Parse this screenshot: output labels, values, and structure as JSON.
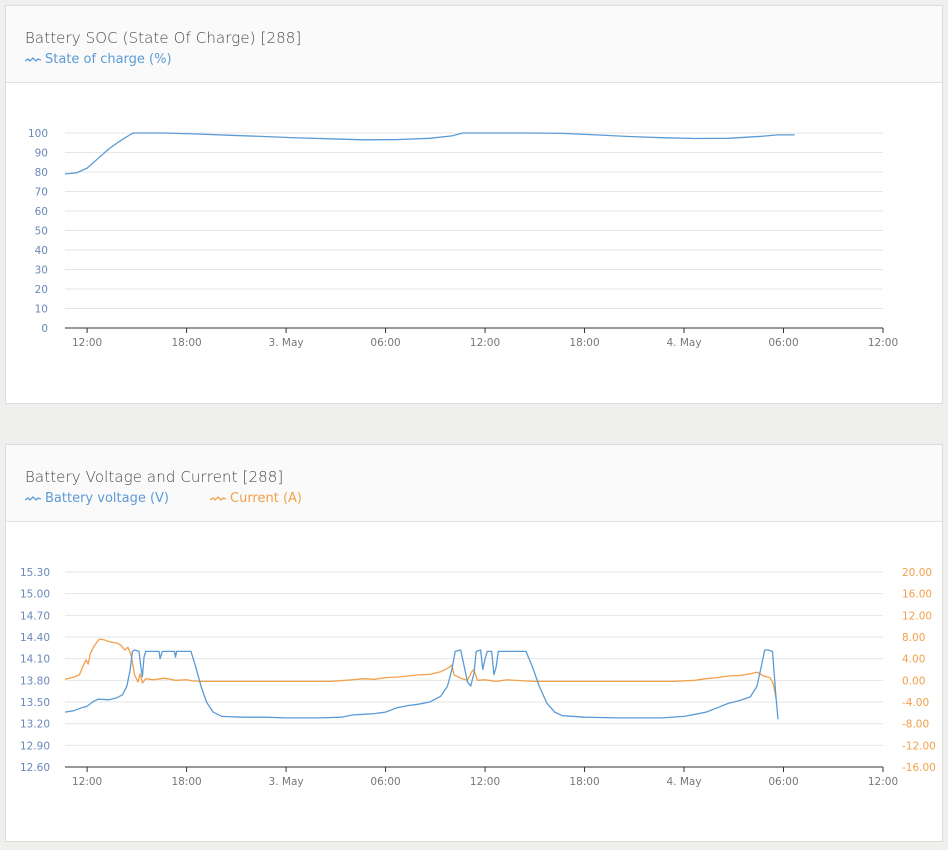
{
  "colors": {
    "voltage": "#5b9bd5",
    "current": "#f2a04a",
    "axis_text_left": "#6a88b8",
    "axis_text_bottom": "#777777",
    "grid": "#e6e6e6",
    "axis": "#333333"
  },
  "panels": [
    {
      "title": "Battery SOC (State Of Charge) [288]",
      "legend": [
        "State of charge (%)"
      ]
    },
    {
      "title": "Battery Voltage and Current [288]",
      "legend": [
        "Battery voltage (V)",
        "Current (A)"
      ]
    }
  ],
  "chart_data": [
    {
      "type": "line",
      "x_ticks": [
        "12:00",
        "18:00",
        "3. May",
        "06:00",
        "12:00",
        "18:00",
        "4. May",
        "06:00",
        "12:00"
      ],
      "x_range": [
        "2 May 10:00",
        "4 May 12:00"
      ],
      "y_ticks": [
        "100",
        "90",
        "80",
        "70",
        "60",
        "50",
        "40",
        "30",
        "20",
        "10",
        "0"
      ],
      "ylim": [
        0,
        100
      ],
      "grid": true,
      "series": [
        {
          "name": "State of charge (%)",
          "axis": "left",
          "points": [
            [
              0,
              79
            ],
            [
              1,
              79.5
            ],
            [
              2,
              82
            ],
            [
              3,
              87
            ],
            [
              4,
              92
            ],
            [
              5,
              96
            ],
            [
              6,
              99.5
            ],
            [
              6.2,
              100
            ],
            [
              9,
              100
            ],
            [
              12,
              99.5
            ],
            [
              15,
              98.8
            ],
            [
              18,
              98.2
            ],
            [
              21,
              97.5
            ],
            [
              24,
              97
            ],
            [
              27,
              96.5
            ],
            [
              30,
              96.6
            ],
            [
              33,
              97.3
            ],
            [
              35,
              98.5
            ],
            [
              36,
              100
            ],
            [
              36.2,
              100
            ],
            [
              42,
              100
            ],
            [
              45,
              99.8
            ],
            [
              48,
              99
            ],
            [
              51,
              98.2
            ],
            [
              54,
              97.6
            ],
            [
              57,
              97.2
            ],
            [
              60,
              97.3
            ],
            [
              63,
              98.3
            ],
            [
              64.5,
              99
            ],
            [
              66,
              99
            ]
          ]
        }
      ]
    },
    {
      "type": "line",
      "x_ticks": [
        "12:00",
        "18:00",
        "3. May",
        "06:00",
        "12:00",
        "18:00",
        "4. May",
        "06:00",
        "12:00"
      ],
      "x_range": [
        "2 May 10:00",
        "4 May 12:00"
      ],
      "y_left_ticks": [
        "15.30",
        "15.00",
        "14.70",
        "14.40",
        "14.10",
        "13.80",
        "13.50",
        "13.20",
        "12.90",
        "12.60"
      ],
      "y_left_range": [
        12.6,
        15.3
      ],
      "y_right_ticks": [
        "20.00",
        "16.00",
        "12.00",
        "8.00",
        "4.00",
        "0.00",
        "-4.00",
        "-8.00",
        "-12.00",
        "-16.00"
      ],
      "y_right_range": [
        -16,
        20
      ],
      "grid": true,
      "series": [
        {
          "name": "Battery voltage (V)",
          "axis": "left",
          "points": [
            [
              0,
              13.36
            ],
            [
              0.8,
              13.38
            ],
            [
              1.5,
              13.42
            ],
            [
              2,
              13.44
            ],
            [
              2.5,
              13.5
            ],
            [
              3,
              13.54
            ],
            [
              4,
              13.53
            ],
            [
              4.7,
              13.56
            ],
            [
              5.2,
              13.6
            ],
            [
              5.6,
              13.72
            ],
            [
              5.9,
              13.95
            ],
            [
              6.1,
              14.2
            ],
            [
              6.3,
              14.22
            ],
            [
              6.7,
              14.2
            ],
            [
              6.85,
              14.0
            ],
            [
              7.0,
              13.85
            ],
            [
              7.15,
              14.12
            ],
            [
              7.3,
              14.2
            ],
            [
              8.5,
              14.2
            ],
            [
              8.6,
              14.1
            ],
            [
              8.8,
              14.2
            ],
            [
              9.9,
              14.2
            ],
            [
              10.0,
              14.12
            ],
            [
              10.1,
              14.2
            ],
            [
              11.4,
              14.2
            ],
            [
              11.8,
              14.0
            ],
            [
              12.3,
              13.72
            ],
            [
              12.8,
              13.5
            ],
            [
              13.4,
              13.36
            ],
            [
              14.2,
              13.3
            ],
            [
              16,
              13.29
            ],
            [
              18,
              13.29
            ],
            [
              20,
              13.28
            ],
            [
              23,
              13.28
            ],
            [
              25,
              13.29
            ],
            [
              26,
              13.32
            ],
            [
              27,
              13.33
            ],
            [
              28,
              13.34
            ],
            [
              29,
              13.36
            ],
            [
              30,
              13.42
            ],
            [
              31,
              13.45
            ],
            [
              32,
              13.47
            ],
            [
              33,
              13.5
            ],
            [
              34,
              13.58
            ],
            [
              34.6,
              13.72
            ],
            [
              35,
              13.95
            ],
            [
              35.3,
              14.2
            ],
            [
              35.8,
              14.22
            ],
            [
              36.1,
              14.0
            ],
            [
              36.4,
              13.78
            ],
            [
              36.7,
              13.72
            ],
            [
              37.0,
              13.9
            ],
            [
              37.2,
              14.2
            ],
            [
              37.6,
              14.22
            ],
            [
              37.8,
              13.95
            ],
            [
              38.0,
              14.1
            ],
            [
              38.2,
              14.2
            ],
            [
              38.6,
              14.2
            ],
            [
              38.8,
              13.88
            ],
            [
              39.0,
              13.98
            ],
            [
              39.2,
              14.2
            ],
            [
              41.7,
              14.2
            ],
            [
              42.3,
              13.98
            ],
            [
              42.9,
              13.72
            ],
            [
              43.6,
              13.48
            ],
            [
              44.3,
              13.36
            ],
            [
              45,
              13.31
            ],
            [
              47,
              13.29
            ],
            [
              50,
              13.28
            ],
            [
              54,
              13.28
            ],
            [
              56,
              13.3
            ],
            [
              57,
              13.33
            ],
            [
              58,
              13.36
            ],
            [
              59,
              13.42
            ],
            [
              60,
              13.48
            ],
            [
              61,
              13.52
            ],
            [
              62,
              13.57
            ],
            [
              62.6,
              13.72
            ],
            [
              63.0,
              14.0
            ],
            [
              63.3,
              14.22
            ],
            [
              63.6,
              14.22
            ],
            [
              64.0,
              14.2
            ],
            [
              64.3,
              13.6
            ],
            [
              64.5,
              13.26
            ]
          ]
        },
        {
          "name": "Current (A)",
          "axis": "right",
          "points": [
            [
              0,
              0.2
            ],
            [
              0.8,
              0.6
            ],
            [
              1.3,
              1.0
            ],
            [
              1.6,
              2.5
            ],
            [
              1.9,
              3.8
            ],
            [
              2.1,
              3.0
            ],
            [
              2.3,
              5.0
            ],
            [
              2.6,
              6.2
            ],
            [
              2.9,
              7.1
            ],
            [
              3.1,
              7.6
            ],
            [
              3.5,
              7.5
            ],
            [
              3.9,
              7.2
            ],
            [
              4.3,
              7.0
            ],
            [
              4.7,
              6.9
            ],
            [
              5.1,
              6.4
            ],
            [
              5.4,
              5.6
            ],
            [
              5.7,
              6.1
            ],
            [
              6.0,
              4.5
            ],
            [
              6.3,
              1.0
            ],
            [
              6.6,
              -0.3
            ],
            [
              6.8,
              1.2
            ],
            [
              7.0,
              -0.5
            ],
            [
              7.3,
              0.3
            ],
            [
              8.0,
              0.1
            ],
            [
              9.0,
              0.4
            ],
            [
              10.0,
              0.0
            ],
            [
              11.0,
              0.1
            ],
            [
              11.5,
              -0.1
            ],
            [
              12.5,
              -0.2
            ],
            [
              15,
              -0.2
            ],
            [
              18,
              -0.2
            ],
            [
              21,
              -0.2
            ],
            [
              24,
              -0.2
            ],
            [
              26,
              0.1
            ],
            [
              27,
              0.3
            ],
            [
              28,
              0.2
            ],
            [
              29,
              0.5
            ],
            [
              30,
              0.6
            ],
            [
              31,
              0.8
            ],
            [
              32,
              1.0
            ],
            [
              33,
              1.1
            ],
            [
              34,
              1.6
            ],
            [
              34.6,
              2.2
            ],
            [
              35.0,
              2.8
            ],
            [
              35.2,
              1.0
            ],
            [
              35.8,
              0.4
            ],
            [
              36.4,
              0.0
            ],
            [
              36.8,
              1.6
            ],
            [
              37.0,
              2.0
            ],
            [
              37.3,
              0.0
            ],
            [
              38.0,
              0.1
            ],
            [
              39.0,
              -0.2
            ],
            [
              40,
              0.1
            ],
            [
              41.5,
              -0.1
            ],
            [
              42.5,
              -0.2
            ],
            [
              45,
              -0.2
            ],
            [
              50,
              -0.2
            ],
            [
              55,
              -0.2
            ],
            [
              57,
              0.0
            ],
            [
              58,
              0.3
            ],
            [
              59,
              0.5
            ],
            [
              60,
              0.8
            ],
            [
              61,
              0.9
            ],
            [
              62,
              1.2
            ],
            [
              62.6,
              1.5
            ],
            [
              63.2,
              0.8
            ],
            [
              63.8,
              0.5
            ],
            [
              64.1,
              -0.8
            ],
            [
              64.3,
              -3.2
            ]
          ]
        }
      ]
    }
  ]
}
